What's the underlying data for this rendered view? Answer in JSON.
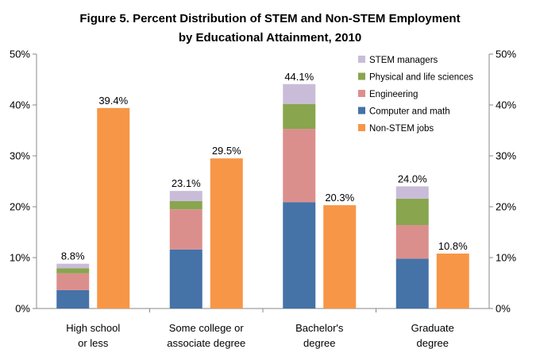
{
  "chart_data": {
    "type": "bar",
    "title_lines": [
      "Figure 5. Percent Distribution of STEM and Non-STEM Employment",
      "by Educational Attainment, 2010"
    ],
    "categories": [
      [
        "High school",
        "or less"
      ],
      [
        "Some college or",
        "associate degree"
      ],
      [
        "Bachelor's",
        "degree"
      ],
      [
        "Graduate",
        "degree"
      ]
    ],
    "y_ticks": [
      "0%",
      "10%",
      "20%",
      "30%",
      "40%",
      "50%"
    ],
    "ylim": [
      0,
      50
    ],
    "grid": false,
    "legend_position": "top-right",
    "stem_stack": [
      {
        "name": "Computer and math",
        "color": "#4572a7",
        "values": [
          3.6,
          11.6,
          20.9,
          9.8
        ]
      },
      {
        "name": "Engineering",
        "color": "#db8f8d",
        "values": [
          3.3,
          7.9,
          14.4,
          6.6
        ]
      },
      {
        "name": "Physical and life sciences",
        "color": "#89a54e",
        "values": [
          1.0,
          1.6,
          4.9,
          5.2
        ]
      },
      {
        "name": "STEM managers",
        "color": "#c9bcd9",
        "values": [
          0.9,
          2.0,
          3.9,
          2.4
        ]
      }
    ],
    "stem_totals": [
      "8.8%",
      "23.1%",
      "44.1%",
      "24.0%"
    ],
    "nonstem": {
      "name": "Non-STEM jobs",
      "color": "#f79646",
      "values": [
        39.4,
        29.5,
        20.3,
        10.8
      ],
      "labels": [
        "39.4%",
        "29.5%",
        "20.3%",
        "10.8%"
      ]
    },
    "legend": [
      {
        "name": "STEM managers",
        "color": "#c9bcd9"
      },
      {
        "name": "Physical and life sciences",
        "color": "#89a54e"
      },
      {
        "name": "Engineering",
        "color": "#db8f8d"
      },
      {
        "name": "Computer and math",
        "color": "#4572a7"
      },
      {
        "name": "Non-STEM jobs",
        "color": "#f79646"
      }
    ]
  }
}
